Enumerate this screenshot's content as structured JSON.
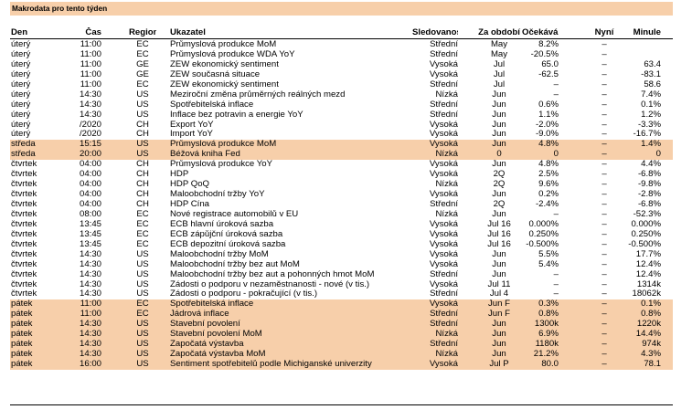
{
  "title": "Makrodata pro tento týden",
  "headers": {
    "den": "Den",
    "cas": "Čas",
    "region": "Region",
    "ukazatel": "Ukazatel",
    "sledovanost": "Sledovanost",
    "za_obdobi": "Za období",
    "ocekavani": "Očekávání",
    "nyni": "Nyní",
    "minule": "Minule"
  },
  "highlight_color": "#f7cfaa",
  "rows": [
    {
      "den": "úterý",
      "cas": "11:00",
      "region": "EC",
      "ukazatel": "Průmyslová produkce MoM",
      "sled": "Střední",
      "za": "May",
      "oc": "8.2%",
      "ny": "–",
      "mi": "",
      "hl": false
    },
    {
      "den": "úterý",
      "cas": "11:00",
      "region": "EC",
      "ukazatel": "Průmyslová produkce WDA YoY",
      "sled": "Střední",
      "za": "May",
      "oc": "-20.5%",
      "ny": "–",
      "mi": "",
      "hl": false
    },
    {
      "den": "úterý",
      "cas": "11:00",
      "region": "GE",
      "ukazatel": "ZEW ekonomický sentiment",
      "sled": "Vysoká",
      "za": "Jul",
      "oc": "65.0",
      "ny": "–",
      "mi": "63.4",
      "hl": false
    },
    {
      "den": "úterý",
      "cas": "11:00",
      "region": "GE",
      "ukazatel": "ZEW současná situace",
      "sled": "Vysoká",
      "za": "Jul",
      "oc": "-62.5",
      "ny": "–",
      "mi": "-83.1",
      "hl": false
    },
    {
      "den": "úterý",
      "cas": "11:00",
      "region": "EC",
      "ukazatel": "ZEW ekonomický sentiment",
      "sled": "Střední",
      "za": "Jul",
      "oc": "–",
      "ny": "–",
      "mi": "58.6",
      "hl": false
    },
    {
      "den": "úterý",
      "cas": "14:30",
      "region": "US",
      "ukazatel": "Meziroční změna průměrných reálných mezd",
      "sled": "Nízká",
      "za": "Jun",
      "oc": "–",
      "ny": "–",
      "mi": "7.4%",
      "hl": false
    },
    {
      "den": "úterý",
      "cas": "14:30",
      "region": "US",
      "ukazatel": "Spotřebitelská inflace",
      "sled": "Střední",
      "za": "Jun",
      "oc": "0.6%",
      "ny": "–",
      "mi": "0.1%",
      "hl": false
    },
    {
      "den": "úterý",
      "cas": "14:30",
      "region": "US",
      "ukazatel": "Inflace bez potravin a energie YoY",
      "sled": "Střední",
      "za": "Jun",
      "oc": "1.1%",
      "ny": "–",
      "mi": "1.2%",
      "hl": false
    },
    {
      "den": "úterý",
      "cas": "/2020",
      "region": "CH",
      "ukazatel": "Export YoY",
      "sled": "Vysoká",
      "za": "Jun",
      "oc": "-2.0%",
      "ny": "–",
      "mi": "-3.3%",
      "hl": false
    },
    {
      "den": "úterý",
      "cas": "/2020",
      "region": "CH",
      "ukazatel": "Import YoY",
      "sled": "Vysoká",
      "za": "Jun",
      "oc": "-9.0%",
      "ny": "–",
      "mi": "-16.7%",
      "hl": false
    },
    {
      "den": "středa",
      "cas": "15:15",
      "region": "US",
      "ukazatel": "Průmyslová produkce MoM",
      "sled": "Vysoká",
      "za": "Jun",
      "oc": "4.8%",
      "ny": "–",
      "mi": "1.4%",
      "hl": true
    },
    {
      "den": "středa",
      "cas": "20:00",
      "region": "US",
      "ukazatel": "Béžová kniha Fed",
      "sled": "Nízká",
      "za": "0",
      "oc": "0",
      "ny": "–",
      "mi": "0",
      "hl": true
    },
    {
      "den": "čtvrtek",
      "cas": "04:00",
      "region": "CH",
      "ukazatel": "Průmyslová produkce YoY",
      "sled": "Vysoká",
      "za": "Jun",
      "oc": "4.8%",
      "ny": "–",
      "mi": "4.4%",
      "hl": false
    },
    {
      "den": "čtvrtek",
      "cas": "04:00",
      "region": "CH",
      "ukazatel": "HDP",
      "sled": "Vysoká",
      "za": "2Q",
      "oc": "2.5%",
      "ny": "–",
      "mi": "-6.8%",
      "hl": false
    },
    {
      "den": "čtvrtek",
      "cas": "04:00",
      "region": "CH",
      "ukazatel": "HDP QoQ",
      "sled": "Nízká",
      "za": "2Q",
      "oc": "9.6%",
      "ny": "–",
      "mi": "-9.8%",
      "hl": false
    },
    {
      "den": "čtvrtek",
      "cas": "04:00",
      "region": "CH",
      "ukazatel": "Maloobchodní tržby YoY",
      "sled": "Vysoká",
      "za": "Jun",
      "oc": "0.2%",
      "ny": "–",
      "mi": "-2.8%",
      "hl": false
    },
    {
      "den": "čtvrtek",
      "cas": "04:00",
      "region": "CH",
      "ukazatel": "HDP Čína",
      "sled": "Střední",
      "za": "2Q",
      "oc": "-2.4%",
      "ny": "–",
      "mi": "-6.8%",
      "hl": false
    },
    {
      "den": "čtvrtek",
      "cas": "08:00",
      "region": "EC",
      "ukazatel": "Nové registrace automobilů v EU",
      "sled": "Nízká",
      "za": "Jun",
      "oc": "–",
      "ny": "–",
      "mi": "-52.3%",
      "hl": false
    },
    {
      "den": "čtvrtek",
      "cas": "13:45",
      "region": "EC",
      "ukazatel": "ECB hlavní úroková sazba",
      "sled": "Vysoká",
      "za": "Jul 16",
      "oc": "0.000%",
      "ny": "–",
      "mi": "0.000%",
      "hl": false
    },
    {
      "den": "čtvrtek",
      "cas": "13:45",
      "region": "EC",
      "ukazatel": "ECB zápůjční úroková sazba",
      "sled": "Vysoká",
      "za": "Jul 16",
      "oc": "0.250%",
      "ny": "–",
      "mi": "0.250%",
      "hl": false
    },
    {
      "den": "čtvrtek",
      "cas": "13:45",
      "region": "EC",
      "ukazatel": "ECB depozitní úroková sazba",
      "sled": "Vysoká",
      "za": "Jul 16",
      "oc": "-0.500%",
      "ny": "–",
      "mi": "-0.500%",
      "hl": false
    },
    {
      "den": "čtvrtek",
      "cas": "14:30",
      "region": "US",
      "ukazatel": "Maloobchodní tržby MoM",
      "sled": "Vysoká",
      "za": "Jun",
      "oc": "5.5%",
      "ny": "–",
      "mi": "17.7%",
      "hl": false
    },
    {
      "den": "čtvrtek",
      "cas": "14:30",
      "region": "US",
      "ukazatel": "Maloobchodní tržby bez aut MoM",
      "sled": "Vysoká",
      "za": "Jun",
      "oc": "5.4%",
      "ny": "–",
      "mi": "12.4%",
      "hl": false
    },
    {
      "den": "čtvrtek",
      "cas": "14:30",
      "region": "US",
      "ukazatel": "Maloobchodní tržby bez aut a pohonných hmot MoM",
      "sled": "Střední",
      "za": "Jun",
      "oc": "–",
      "ny": "–",
      "mi": "12.4%",
      "hl": false
    },
    {
      "den": "čtvrtek",
      "cas": "14:30",
      "region": "US",
      "ukazatel": "Žádosti o podporu v nezaměstnanosti - nové (v tis.)",
      "sled": "Vysoká",
      "za": "Jul 11",
      "oc": "–",
      "ny": "–",
      "mi": "1314k",
      "hl": false
    },
    {
      "den": "čtvrtek",
      "cas": "14:30",
      "region": "US",
      "ukazatel": "Žádosti o podporu - pokračující (v tis.)",
      "sled": "Střední",
      "za": "Jul 4",
      "oc": "–",
      "ny": "–",
      "mi": "18062k",
      "hl": false
    },
    {
      "den": "pátek",
      "cas": "11:00",
      "region": "EC",
      "ukazatel": "Spotřebitelská inflace",
      "sled": "Vysoká",
      "za": "Jun F",
      "oc": "0.3%",
      "ny": "–",
      "mi": "0.1%",
      "hl": true
    },
    {
      "den": "pátek",
      "cas": "11:00",
      "region": "EC",
      "ukazatel": "Jádrová inflace",
      "sled": "Střední",
      "za": "Jun F",
      "oc": "0.8%",
      "ny": "–",
      "mi": "0.8%",
      "hl": true
    },
    {
      "den": "pátek",
      "cas": "14:30",
      "region": "US",
      "ukazatel": "Stavební povolení",
      "sled": "Střední",
      "za": "Jun",
      "oc": "1300k",
      "ny": "–",
      "mi": "1220k",
      "hl": true
    },
    {
      "den": "pátek",
      "cas": "14:30",
      "region": "US",
      "ukazatel": "Stavební povolení MoM",
      "sled": "Nízká",
      "za": "Jun",
      "oc": "6.9%",
      "ny": "–",
      "mi": "14.4%",
      "hl": true
    },
    {
      "den": "pátek",
      "cas": "14:30",
      "region": "US",
      "ukazatel": "Započatá výstavba",
      "sled": "Střední",
      "za": "Jun",
      "oc": "1180k",
      "ny": "–",
      "mi": "974k",
      "hl": true
    },
    {
      "den": "pátek",
      "cas": "14:30",
      "region": "US",
      "ukazatel": "Započatá výstavba MoM",
      "sled": "Nízká",
      "za": "Jun",
      "oc": "21.2%",
      "ny": "–",
      "mi": "4.3%",
      "hl": true
    },
    {
      "den": "pátek",
      "cas": "16:00",
      "region": "US",
      "ukazatel": "Sentiment spotřebitelů podle Michiganské univerzity",
      "sled": "Vysoká",
      "za": "Jul P",
      "oc": "80.0",
      "ny": "–",
      "mi": "78.1",
      "hl": true
    }
  ]
}
